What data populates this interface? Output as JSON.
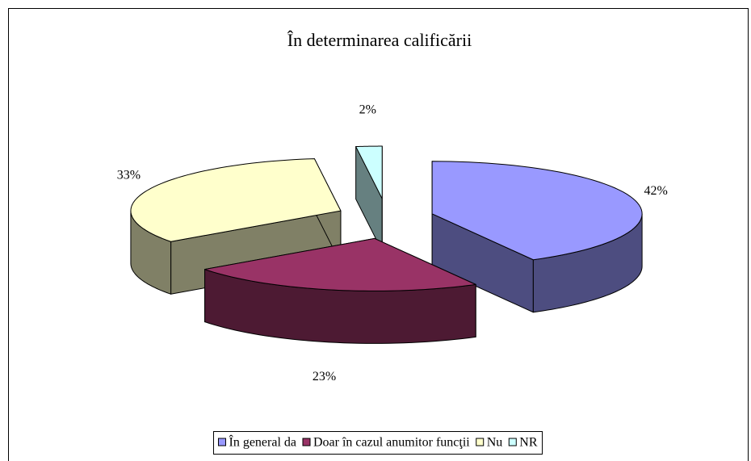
{
  "chart_data": {
    "type": "pie3d",
    "title": "În determinarea calificării",
    "categories": [
      "În general da",
      "Doar în cazul anumitor funcţii",
      "Nu",
      "NR"
    ],
    "values": [
      42,
      23,
      33,
      2
    ],
    "value_labels": [
      "42%",
      "23%",
      "33%",
      "2%"
    ],
    "colors": [
      "#9999FF",
      "#993366",
      "#FFFFCC",
      "#CCFFFF"
    ],
    "legend": "bottom"
  }
}
